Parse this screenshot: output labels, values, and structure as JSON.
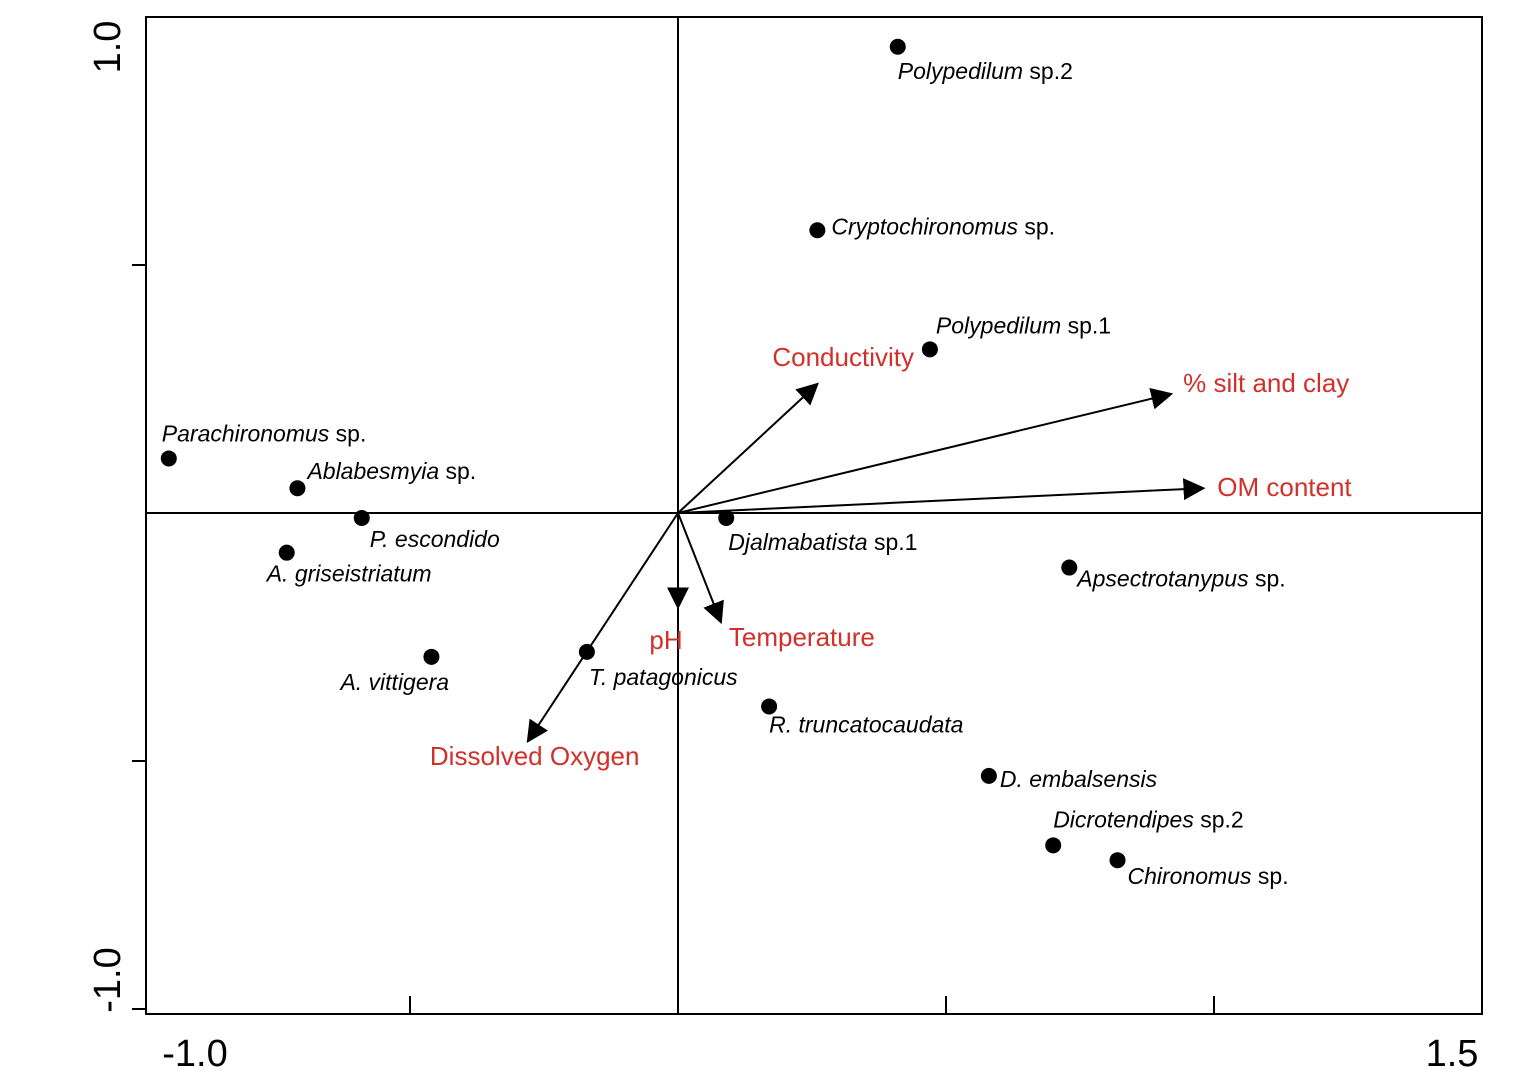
{
  "chart_data": {
    "type": "scatter",
    "title": "",
    "xlabel": "",
    "ylabel": "",
    "xlim": [
      -1.0,
      1.5
    ],
    "ylim": [
      -1.0,
      1.0
    ],
    "x_tick_labels": [
      {
        "value": -1.0,
        "text": "-1.0"
      },
      {
        "value": 1.5,
        "text": "1.5"
      }
    ],
    "y_tick_labels": [
      {
        "value": 1.0,
        "text": "1.0"
      },
      {
        "value": -1.0,
        "text": "-1.0"
      }
    ],
    "x_ticks": [
      -0.5,
      0.0,
      0.5,
      1.0,
      1.5
    ],
    "y_ticks": [
      0.5,
      -0.5,
      -1.0
    ],
    "env_color": "#d2302b",
    "species": [
      {
        "name": "Polypedilum",
        "suffix": " sp.2",
        "x": 0.41,
        "y": 0.94
      },
      {
        "name": "Cryptochironomus",
        "suffix": " sp.",
        "x": 0.26,
        "y": 0.57
      },
      {
        "name": "Polypedilum",
        "suffix": " sp.1",
        "x": 0.47,
        "y": 0.33
      },
      {
        "name": "Parachironomus",
        "suffix": " sp.",
        "x": -0.95,
        "y": 0.11
      },
      {
        "name": "Ablabesmyia",
        "suffix": " sp.",
        "x": -0.71,
        "y": 0.05
      },
      {
        "name": "P. escondido",
        "suffix": "",
        "x": -0.59,
        "y": -0.01
      },
      {
        "name": "A. griseistriatum",
        "suffix": "",
        "x": -0.73,
        "y": -0.08
      },
      {
        "name": "Djalmabatista",
        "suffix": " sp.1",
        "x": 0.09,
        "y": -0.01
      },
      {
        "name": "Apsectrotanypus",
        "suffix": " sp.",
        "x": 0.73,
        "y": -0.11
      },
      {
        "name": "A. vittigera",
        "suffix": "",
        "x": -0.46,
        "y": -0.29
      },
      {
        "name": "T. patagonicus",
        "suffix": "",
        "x": -0.17,
        "y": -0.28
      },
      {
        "name": "R. truncatocaudata",
        "suffix": "",
        "x": 0.17,
        "y": -0.39
      },
      {
        "name": "D. embalsensis",
        "suffix": "",
        "x": 0.58,
        "y": -0.53
      },
      {
        "name": "Dicrotendipes",
        "suffix": " sp.2",
        "x": 0.7,
        "y": -0.67
      },
      {
        "name": "Chironomus",
        "suffix": " sp.",
        "x": 0.82,
        "y": -0.7
      }
    ],
    "environmental_vectors": [
      {
        "name": "Conductivity",
        "x": 0.26,
        "y": 0.26
      },
      {
        "name": "% silt and clay",
        "x": 0.92,
        "y": 0.24
      },
      {
        "name": "OM content",
        "x": 0.98,
        "y": 0.05
      },
      {
        "name": "pH",
        "x": 0.0,
        "y": -0.19
      },
      {
        "name": "Temperature",
        "x": 0.08,
        "y": -0.22
      },
      {
        "name": "Dissolved Oxygen",
        "x": -0.28,
        "y": -0.46
      }
    ]
  }
}
